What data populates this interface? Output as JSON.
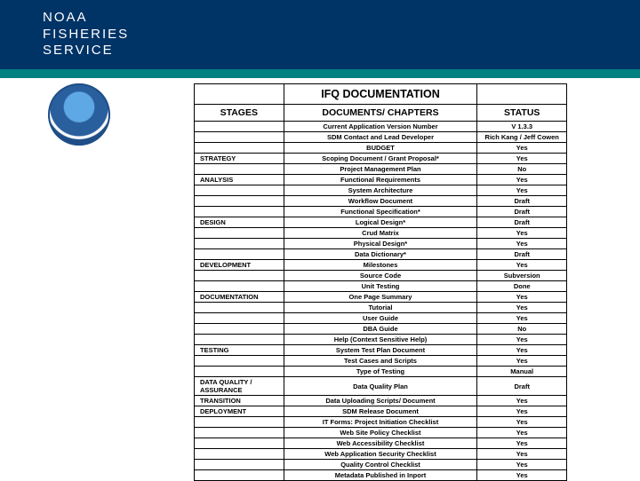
{
  "header": {
    "line1": "NOAA",
    "line2": "FISHERIES",
    "line3": "SERVICE"
  },
  "colors": {
    "header_bg": "#003366",
    "teal_band": "#008080",
    "border": "#000000",
    "cell_bg": "#ffffff"
  },
  "table": {
    "title": "IFQ DOCUMENTATION",
    "headers": {
      "stages": "STAGES",
      "docs": "DOCUMENTS/ CHAPTERS",
      "status": "STATUS"
    },
    "rows": [
      {
        "stage": "",
        "doc": "Current Application Version Number",
        "status": "V 1.3.3"
      },
      {
        "stage": "",
        "doc": "SDM Contact and Lead Developer",
        "status": "Rich Kang / Jeff Cowen"
      },
      {
        "stage": "",
        "doc": "BUDGET",
        "status": "Yes"
      },
      {
        "stage": "STRATEGY",
        "doc": "Scoping Document / Grant Proposal*",
        "status": "Yes"
      },
      {
        "stage": "",
        "doc": "Project Management Plan",
        "status": "No"
      },
      {
        "stage": "ANALYSIS",
        "doc": "Functional Requirements",
        "status": "Yes"
      },
      {
        "stage": "",
        "doc": "System Architecture",
        "status": "Yes"
      },
      {
        "stage": "",
        "doc": "Workflow Document",
        "status": "Draft"
      },
      {
        "stage": "",
        "doc": "Functional Specification*",
        "status": "Draft"
      },
      {
        "stage": "DESIGN",
        "doc": "Logical Design*",
        "status": "Draft"
      },
      {
        "stage": "",
        "doc": "Crud Matrix",
        "status": "Yes"
      },
      {
        "stage": "",
        "doc": "Physical Design*",
        "status": "Yes"
      },
      {
        "stage": "",
        "doc": "Data Dictionary*",
        "status": "Draft"
      },
      {
        "stage": "DEVELOPMENT",
        "doc": "Milestones",
        "status": "Yes"
      },
      {
        "stage": "",
        "doc": "Source Code",
        "status": "Subversion"
      },
      {
        "stage": "",
        "doc": "Unit Testing",
        "status": "Done"
      },
      {
        "stage": "DOCUMENTATION",
        "doc": "One Page Summary",
        "status": "Yes"
      },
      {
        "stage": "",
        "doc": "Tutorial",
        "status": "Yes"
      },
      {
        "stage": "",
        "doc": "User Guide",
        "status": "Yes"
      },
      {
        "stage": "",
        "doc": "DBA Guide",
        "status": "No"
      },
      {
        "stage": "",
        "doc": "Help (Context Sensitive Help)",
        "status": "Yes"
      },
      {
        "stage": "TESTING",
        "doc": "System Test Plan Document",
        "status": "Yes"
      },
      {
        "stage": "",
        "doc": "Test Cases and Scripts",
        "status": "Yes"
      },
      {
        "stage": "",
        "doc": "Type of Testing",
        "status": "Manual"
      },
      {
        "stage": "DATA QUALITY / ASSURANCE",
        "doc": "Data Quality Plan",
        "status": "Draft"
      },
      {
        "stage": "TRANSITION",
        "doc": "Data Uploading Scripts/ Document",
        "status": "Yes"
      },
      {
        "stage": "DEPLOYMENT",
        "doc": "SDM Release Document",
        "status": "Yes"
      },
      {
        "stage": "",
        "doc": "IT Forms: Project Initiation Checklist",
        "status": "Yes"
      },
      {
        "stage": "",
        "doc": "Web Site Policy Checklist",
        "status": "Yes"
      },
      {
        "stage": "",
        "doc": "Web Accessibility Checklist",
        "status": "Yes"
      },
      {
        "stage": "",
        "doc": "Web Application Security Checklist",
        "status": "Yes"
      },
      {
        "stage": "",
        "doc": "Quality Control Checklist",
        "status": "Yes"
      },
      {
        "stage": "",
        "doc": "Metadata Published in Inport",
        "status": "Yes"
      }
    ]
  }
}
